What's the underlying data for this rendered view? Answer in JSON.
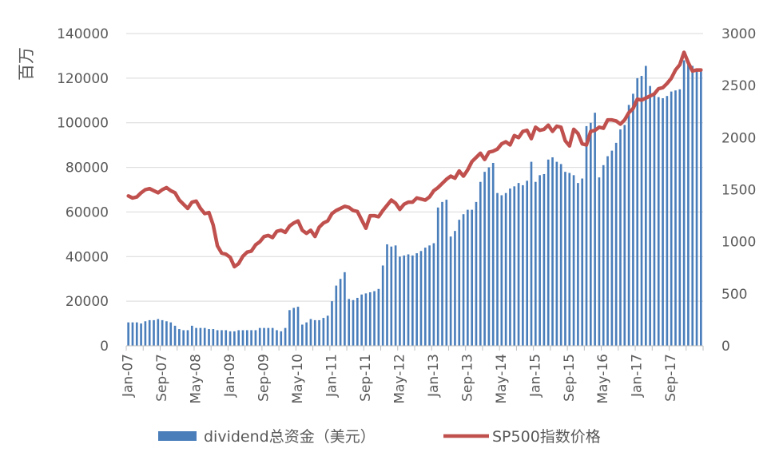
{
  "chart_data": {
    "type": "bar",
    "ylabel": "百万",
    "grid": true,
    "legend_position": "bottom",
    "left_axis": {
      "ylim": [
        0,
        140000
      ],
      "ticks": [
        "140000",
        "120000",
        "100000",
        "80000",
        "60000",
        "40000",
        "20000",
        "0"
      ]
    },
    "right_axis": {
      "ylim": [
        0,
        3000
      ],
      "ticks": [
        "3000",
        "2500",
        "2000",
        "1500",
        "1000",
        "500",
        "0"
      ]
    },
    "x_tick_labels": [
      "Jan-07",
      "Sep-07",
      "May-08",
      "Jan-09",
      "Sep-09",
      "May-10",
      "Jan-11",
      "Sep-11",
      "May-12",
      "Jan-13",
      "Sep-13",
      "May-14",
      "Jan-15",
      "Sep-15",
      "May-16",
      "Jan-17",
      "Sep-17"
    ],
    "x_tick_month_index": [
      0,
      8,
      16,
      24,
      32,
      40,
      48,
      56,
      64,
      72,
      80,
      88,
      96,
      104,
      112,
      120,
      128
    ],
    "months_count": 136,
    "series": [
      {
        "name": "dividend总资金（美元）",
        "type": "bar",
        "axis": "left",
        "color": "#4a7ebb",
        "values": [
          10500,
          10500,
          10500,
          10000,
          11000,
          11500,
          11500,
          12000,
          11500,
          11000,
          10500,
          9000,
          7500,
          7000,
          7000,
          9000,
          8000,
          8000,
          8000,
          7500,
          7500,
          7000,
          7000,
          7000,
          6500,
          6500,
          7000,
          7000,
          7000,
          7000,
          7000,
          8000,
          8000,
          8000,
          8000,
          7000,
          6500,
          8000,
          16000,
          17000,
          17500,
          9500,
          10500,
          12000,
          11500,
          11500,
          12500,
          13500,
          20000,
          27000,
          30000,
          33000,
          21000,
          20500,
          21500,
          23000,
          23500,
          24000,
          24500,
          25500,
          36000,
          45500,
          44500,
          45000,
          40000,
          40500,
          41000,
          40500,
          41500,
          42500,
          44000,
          45000,
          46000,
          62000,
          64500,
          65500,
          49000,
          51500,
          56500,
          59000,
          61000,
          61000,
          64500,
          73500,
          78000,
          80000,
          82000,
          68500,
          67500,
          68500,
          70500,
          71500,
          73000,
          72000,
          74000,
          82500,
          73500,
          76500,
          77000,
          83500,
          84500,
          82500,
          81500,
          78000,
          77500,
          76500,
          73000,
          75000,
          98500,
          100000,
          104500,
          75500,
          81000,
          85000,
          87500,
          91000,
          97000,
          99000,
          108000,
          113000,
          120000,
          121000,
          125500,
          116500,
          113000,
          111500,
          111000,
          112000,
          114000,
          114500,
          115000,
          128000,
          126500,
          125500,
          124000,
          124000
        ]
      },
      {
        "name": "SP500指数价格",
        "type": "line",
        "axis": "right",
        "color": "#c0504d",
        "values": [
          1440,
          1420,
          1430,
          1470,
          1500,
          1510,
          1490,
          1470,
          1500,
          1520,
          1490,
          1470,
          1400,
          1360,
          1320,
          1380,
          1390,
          1320,
          1270,
          1280,
          1160,
          960,
          890,
          880,
          850,
          760,
          790,
          860,
          900,
          910,
          970,
          1000,
          1050,
          1060,
          1040,
          1100,
          1110,
          1090,
          1150,
          1180,
          1200,
          1110,
          1080,
          1110,
          1050,
          1140,
          1180,
          1200,
          1270,
          1300,
          1320,
          1340,
          1330,
          1300,
          1290,
          1210,
          1130,
          1250,
          1250,
          1240,
          1300,
          1350,
          1400,
          1370,
          1310,
          1360,
          1380,
          1380,
          1420,
          1410,
          1400,
          1430,
          1490,
          1520,
          1560,
          1600,
          1630,
          1610,
          1680,
          1630,
          1690,
          1770,
          1810,
          1850,
          1790,
          1860,
          1870,
          1890,
          1940,
          1960,
          1930,
          2020,
          2000,
          2060,
          2070,
          1990,
          2100,
          2070,
          2080,
          2120,
          2060,
          2110,
          2100,
          1970,
          1920,
          2080,
          2040,
          1940,
          1930,
          2060,
          2070,
          2100,
          2090,
          2170,
          2170,
          2160,
          2130,
          2170,
          2240,
          2280,
          2370,
          2360,
          2380,
          2400,
          2420,
          2470,
          2480,
          2520,
          2570,
          2650,
          2700,
          2820,
          2720,
          2640,
          2650,
          2650
        ]
      }
    ]
  }
}
